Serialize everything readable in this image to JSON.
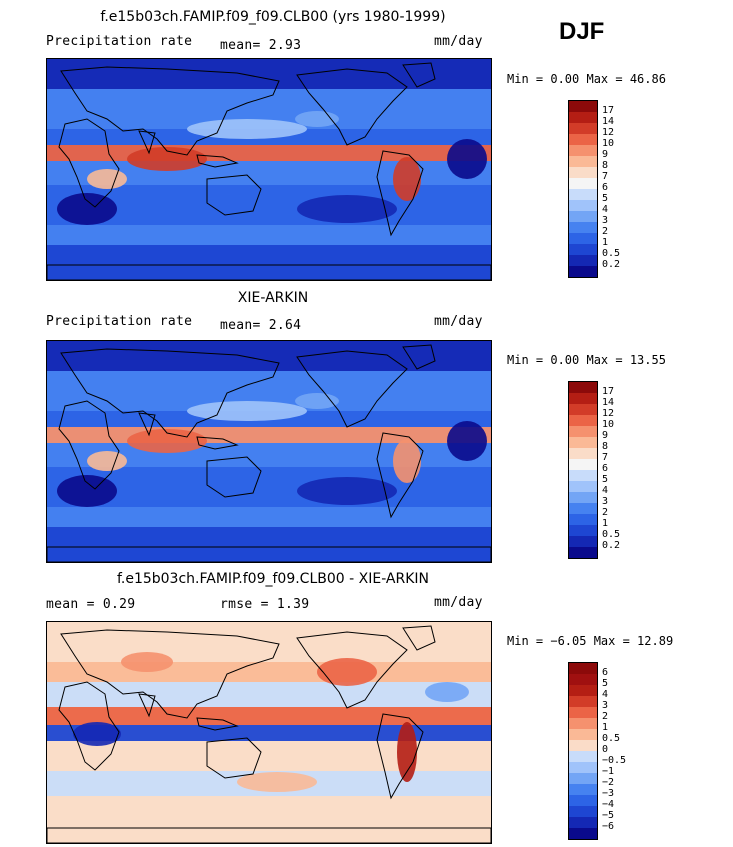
{
  "season": "DJF",
  "panels": [
    {
      "title": "f.e15b03ch.FAMIP.f09_f09.CLB00 (yrs 1980-1999)",
      "left_label": "Precipitation rate",
      "mid_label": "mean=   2.93",
      "units": "mm/day",
      "range": "Min =   0.00 Max =  46.86",
      "map_type": "precip-model"
    },
    {
      "title": "XIE-ARKIN",
      "left_label": "Precipitation rate",
      "mid_label": "mean=   2.64",
      "units": "mm/day",
      "range": "Min =   0.00 Max =  13.55",
      "map_type": "precip-obs"
    },
    {
      "title": "f.e15b03ch.FAMIP.f09_f09.CLB00 - XIE-ARKIN",
      "left_label": "mean =   0.29",
      "mid_label": "rmse =   1.39",
      "units": "mm/day",
      "range": "Min =  −6.05 Max =  12.89",
      "map_type": "difference"
    }
  ],
  "colorbars": {
    "precip": {
      "labels": [
        "0.2",
        "0.5",
        "1",
        "2",
        "3",
        "4",
        "5",
        "6",
        "7",
        "8",
        "9",
        "10",
        "12",
        "14",
        "17"
      ],
      "colors": [
        "#0a0a8c",
        "#1428b4",
        "#1e46d2",
        "#2d64e6",
        "#4682f0",
        "#73a5f5",
        "#a0c3fa",
        "#c8dcfa",
        "#f5f5f5",
        "#fadcc8",
        "#fab996",
        "#f5916e",
        "#eb6446",
        "#d23c28",
        "#b41e14",
        "#8c0a0a"
      ]
    },
    "diff": {
      "labels": [
        "−6",
        "−5",
        "−4",
        "−3",
        "−2",
        "−1",
        "−0.5",
        "0",
        "0.5",
        "1",
        "2",
        "3",
        "4",
        "5",
        "6"
      ],
      "colors": [
        "#0a0a8c",
        "#1428b4",
        "#1e46d2",
        "#2d64e6",
        "#4682f0",
        "#73a5f5",
        "#a0c3fa",
        "#c8dcfa",
        "#fadcc8",
        "#fab996",
        "#f5916e",
        "#eb6446",
        "#d23c28",
        "#b41e14",
        "#a01010",
        "#8c0a0a"
      ]
    }
  }
}
